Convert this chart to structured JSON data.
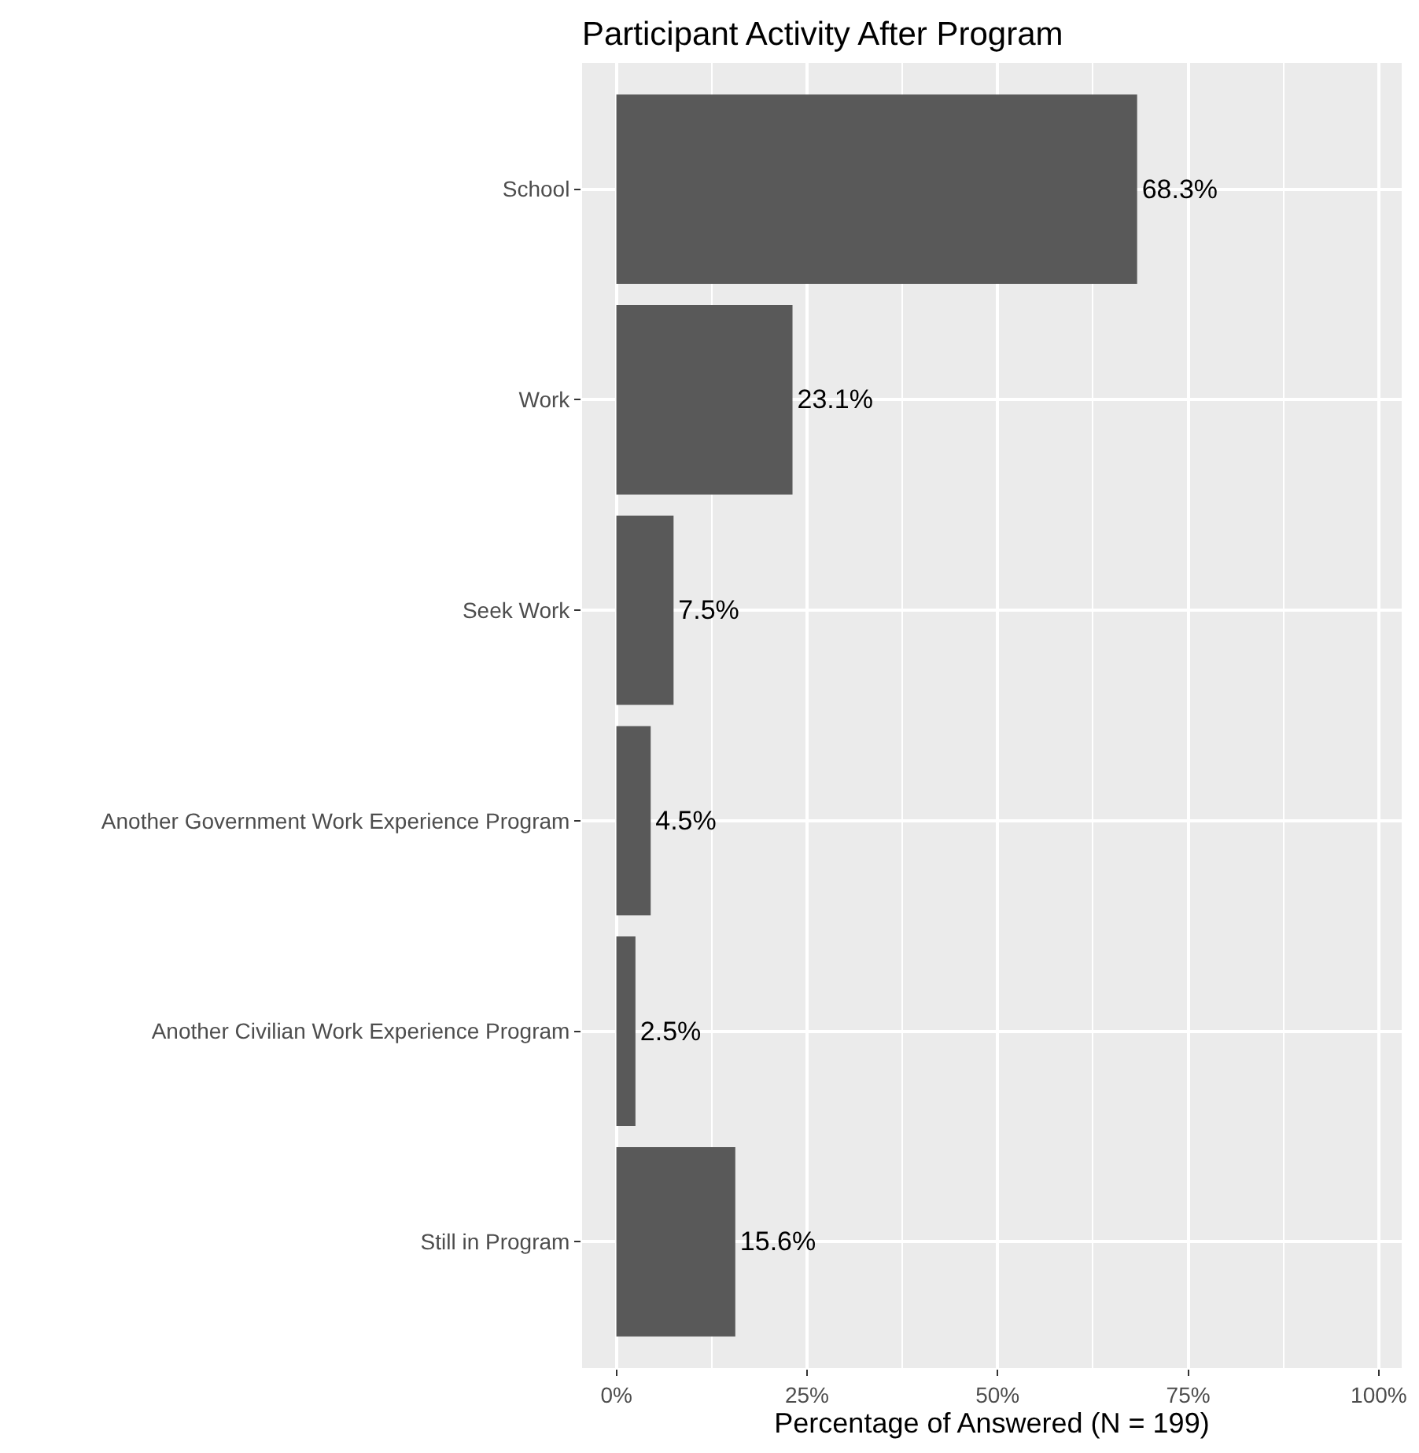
{
  "chart_data": {
    "type": "bar",
    "orientation": "horizontal",
    "title": "Participant Activity After Program",
    "xlabel": "Percentage of Answered (N = 199)",
    "categories": [
      "School",
      "Work",
      "Seek Work",
      "Another Government Work Experience Program",
      "Another Civilian Work Experience Program",
      "Still in Program"
    ],
    "values": [
      68.3,
      23.1,
      7.5,
      4.5,
      2.5,
      15.6
    ],
    "value_labels": [
      "68.3%",
      "23.1%",
      "7.5%",
      "4.5%",
      "2.5%",
      "15.6%"
    ],
    "color": "#595959",
    "xlim": [
      -4.5,
      103
    ],
    "xticks": [
      {
        "value": 0,
        "label": "0%"
      },
      {
        "value": 25,
        "label": "25%"
      },
      {
        "value": 50,
        "label": "50%"
      },
      {
        "value": 75,
        "label": "75%"
      },
      {
        "value": 100,
        "label": "100%"
      }
    ],
    "grid": true
  }
}
